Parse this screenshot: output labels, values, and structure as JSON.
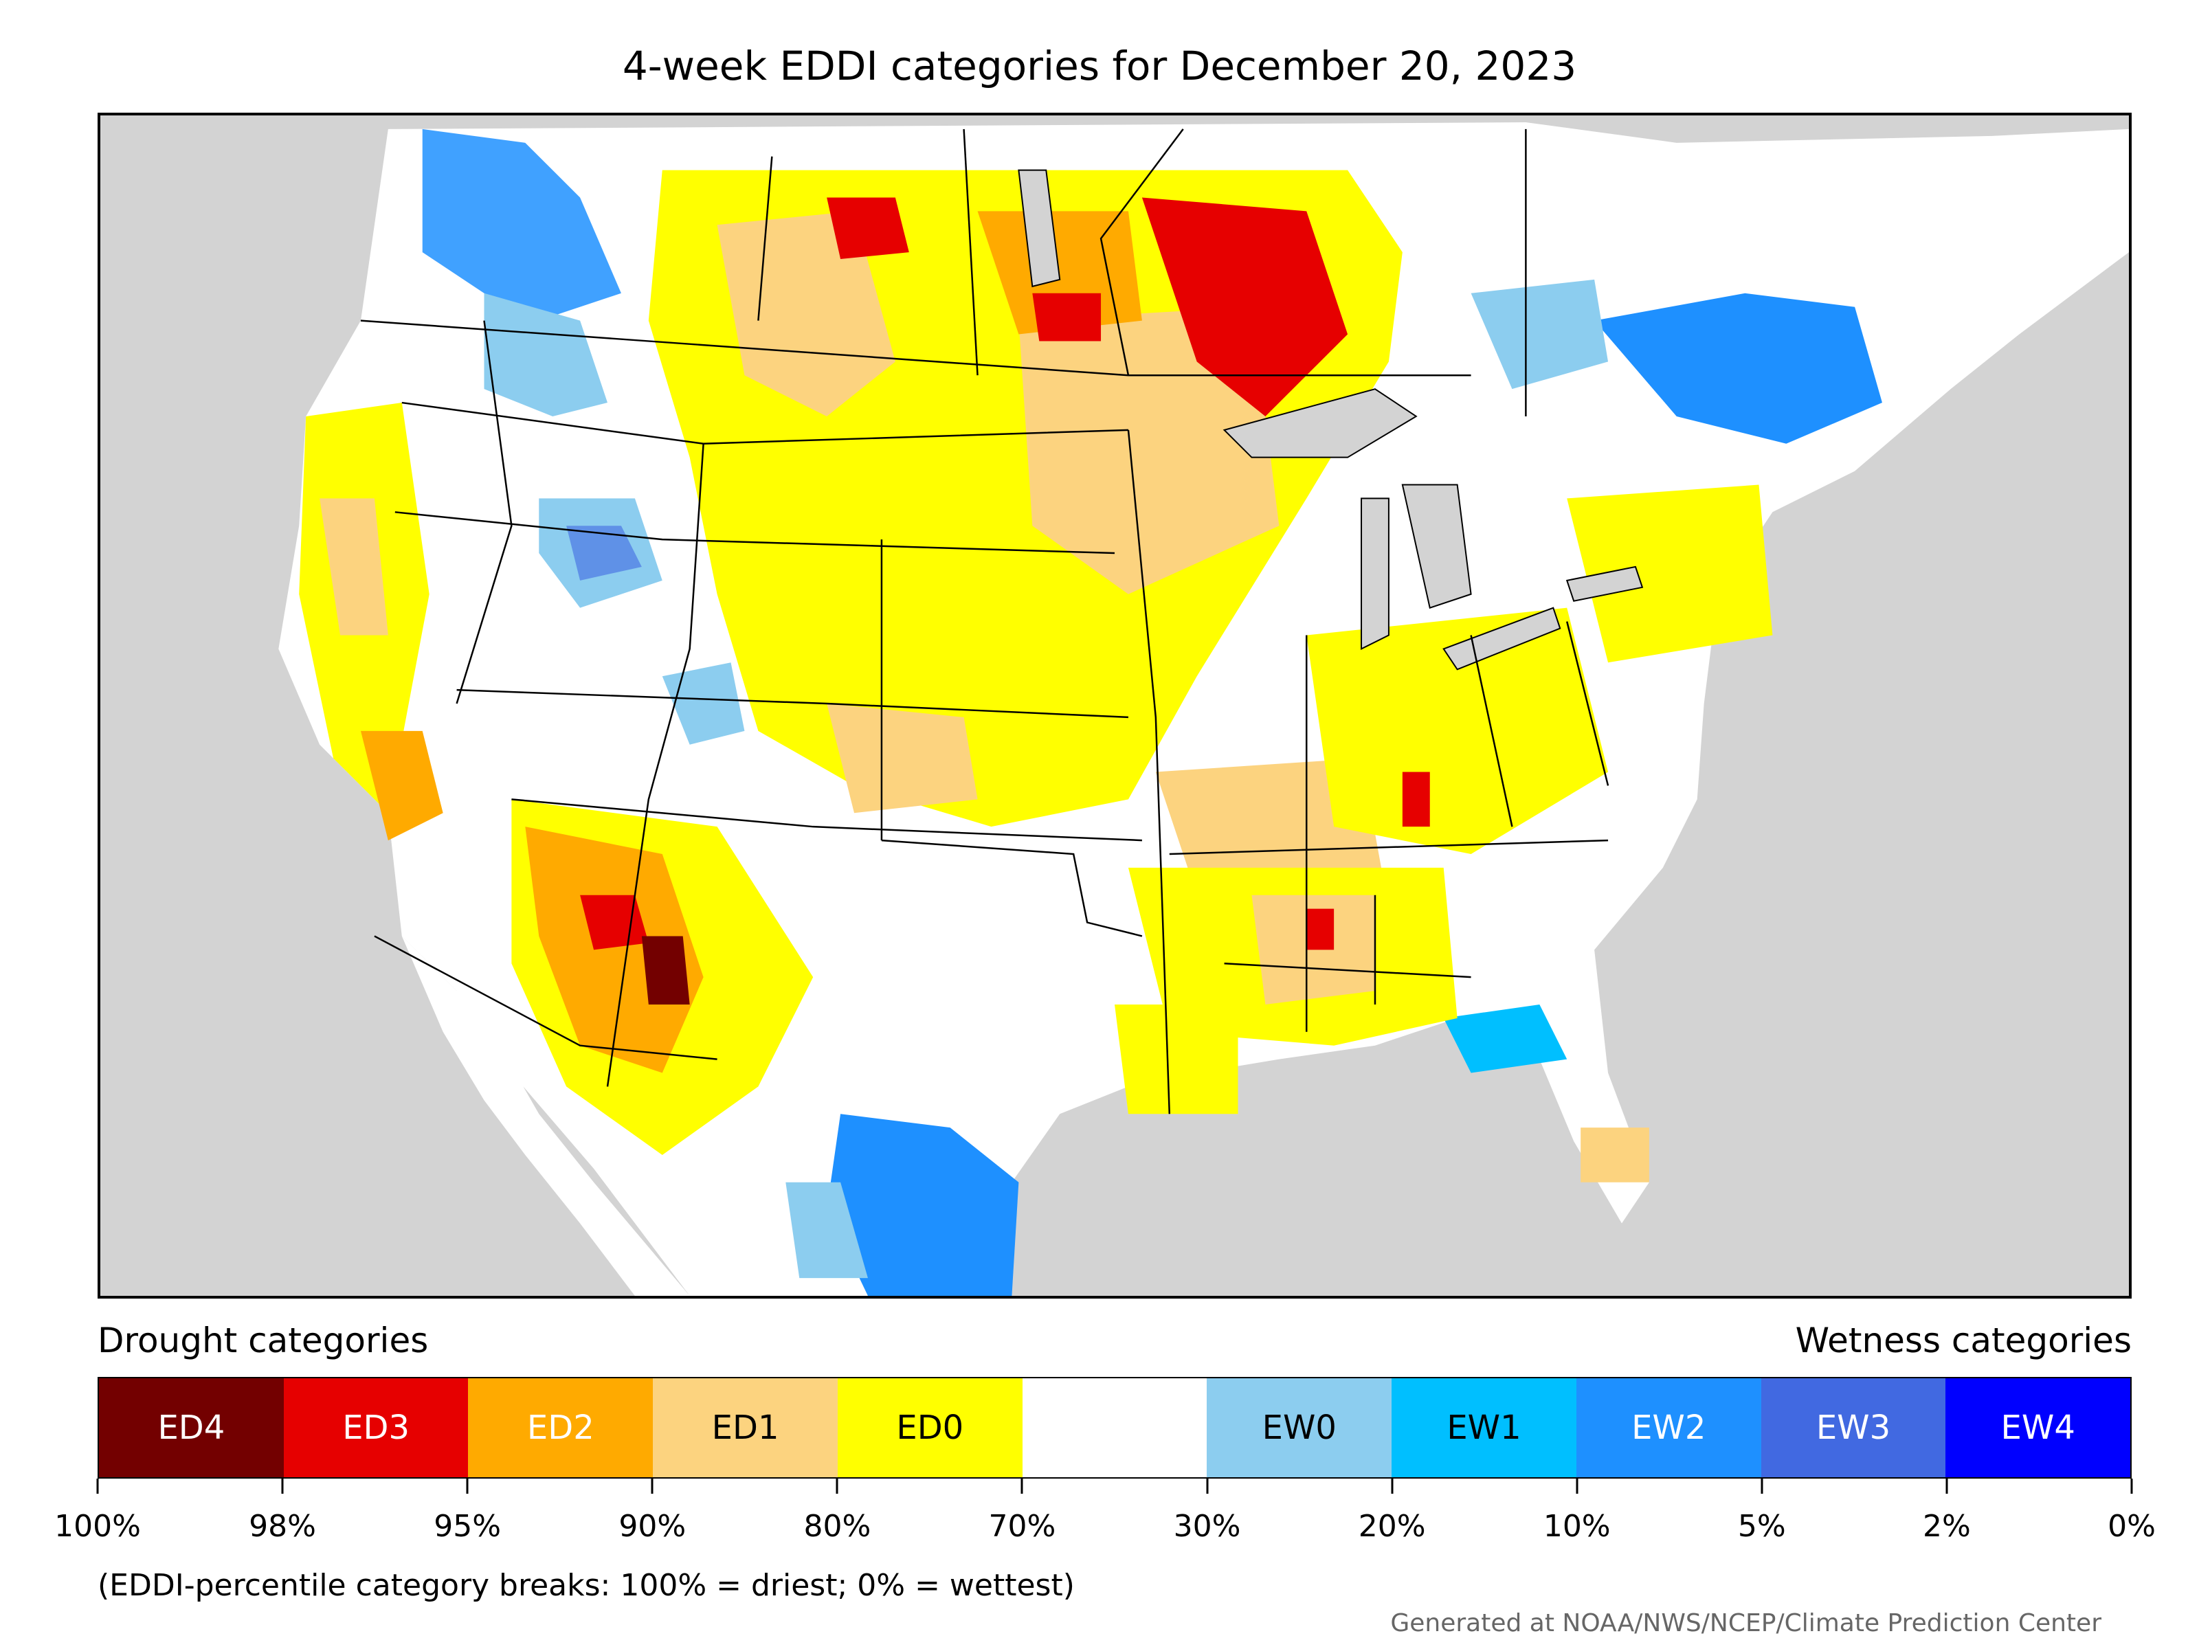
{
  "title": "4-week EDDI categories for December 20, 2023",
  "legend": {
    "drought_label": "Drought categories",
    "wetness_label": "Wetness categories",
    "categories": [
      {
        "label": "ED4",
        "color": "#730000",
        "text_color": "#ffffff"
      },
      {
        "label": "ED3",
        "color": "#e60000",
        "text_color": "#ffffff"
      },
      {
        "label": "ED2",
        "color": "#ffaa00",
        "text_color": "#ffffff"
      },
      {
        "label": "ED1",
        "color": "#fcd37f",
        "text_color": "#000000"
      },
      {
        "label": "ED0",
        "color": "#ffff00",
        "text_color": "#000000"
      },
      {
        "label": "",
        "color": "#ffffff",
        "text_color": "#000000"
      },
      {
        "label": "EW0",
        "color": "#8ccdef",
        "text_color": "#000000"
      },
      {
        "label": "EW1",
        "color": "#00bfff",
        "text_color": "#000000"
      },
      {
        "label": "EW2",
        "color": "#1e90ff",
        "text_color": "#ffffff"
      },
      {
        "label": "EW3",
        "color": "#4169e1",
        "text_color": "#ffffff"
      },
      {
        "label": "EW4",
        "color": "#0000ff",
        "text_color": "#ffffff"
      }
    ],
    "tick_labels": [
      "100%",
      "98%",
      "95%",
      "90%",
      "80%",
      "70%",
      "30%",
      "20%",
      "10%",
      "5%",
      "2%",
      "0%"
    ]
  },
  "note": "(EDDI-percentile category breaks: 100% = driest; 0% = wettest)",
  "credit": "Generated at NOAA/NWS/NCEP/Climate Prediction Center",
  "colors": {
    "ocean": "#d3d3d3",
    "land": "#ffffff",
    "lakes": "#d3d3d3",
    "border": "#000000"
  }
}
